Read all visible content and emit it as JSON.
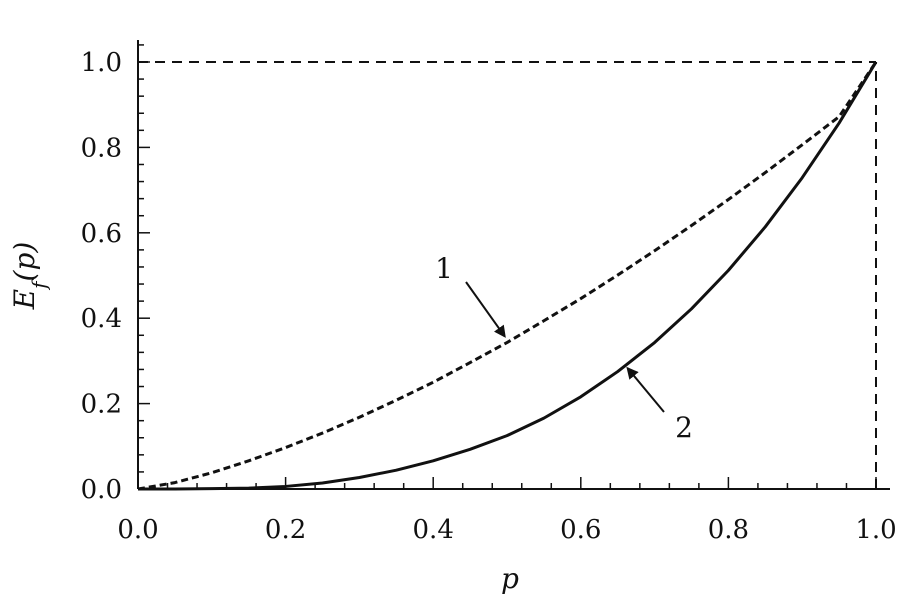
{
  "chart_data": {
    "type": "line",
    "title": "",
    "xlabel": "p",
    "ylabel": "E_f(p)",
    "xlim": [
      0,
      1
    ],
    "ylim": [
      0,
      1
    ],
    "xticks": [
      "0.0",
      "0.2",
      "0.4",
      "0.6",
      "0.8",
      "1.0"
    ],
    "yticks": [
      "0.0",
      "0.2",
      "0.4",
      "0.6",
      "0.8",
      "1.0"
    ],
    "grid": false,
    "legend": "none",
    "x": [
      0.0,
      0.05,
      0.1,
      0.15,
      0.2,
      0.25,
      0.3,
      0.35,
      0.4,
      0.45,
      0.5,
      0.55,
      0.6,
      0.65,
      0.7,
      0.75,
      0.8,
      0.85,
      0.9,
      0.95,
      1.0
    ],
    "series": [
      {
        "name": "1",
        "style": "dashed",
        "values": [
          0.0,
          0.015,
          0.038,
          0.066,
          0.097,
          0.131,
          0.168,
          0.208,
          0.25,
          0.296,
          0.343,
          0.394,
          0.446,
          0.501,
          0.558,
          0.617,
          0.678,
          0.741,
          0.806,
          0.872,
          1.0
        ]
      },
      {
        "name": "2",
        "style": "solid",
        "values": [
          0.0,
          0.0,
          0.001,
          0.002,
          0.006,
          0.014,
          0.027,
          0.044,
          0.066,
          0.093,
          0.125,
          0.166,
          0.216,
          0.275,
          0.343,
          0.422,
          0.512,
          0.614,
          0.729,
          0.857,
          1.0
        ]
      }
    ],
    "reference_lines": [
      {
        "style": "dashed",
        "from": [
          0,
          1
        ],
        "to": [
          1,
          1
        ]
      },
      {
        "style": "dashed",
        "from": [
          1,
          0
        ],
        "to": [
          1,
          1
        ]
      }
    ],
    "annotations": [
      {
        "text": "1",
        "points_to": [
          0.5,
          0.35
        ]
      },
      {
        "text": "2",
        "points_to": [
          0.66,
          0.29
        ]
      }
    ]
  }
}
